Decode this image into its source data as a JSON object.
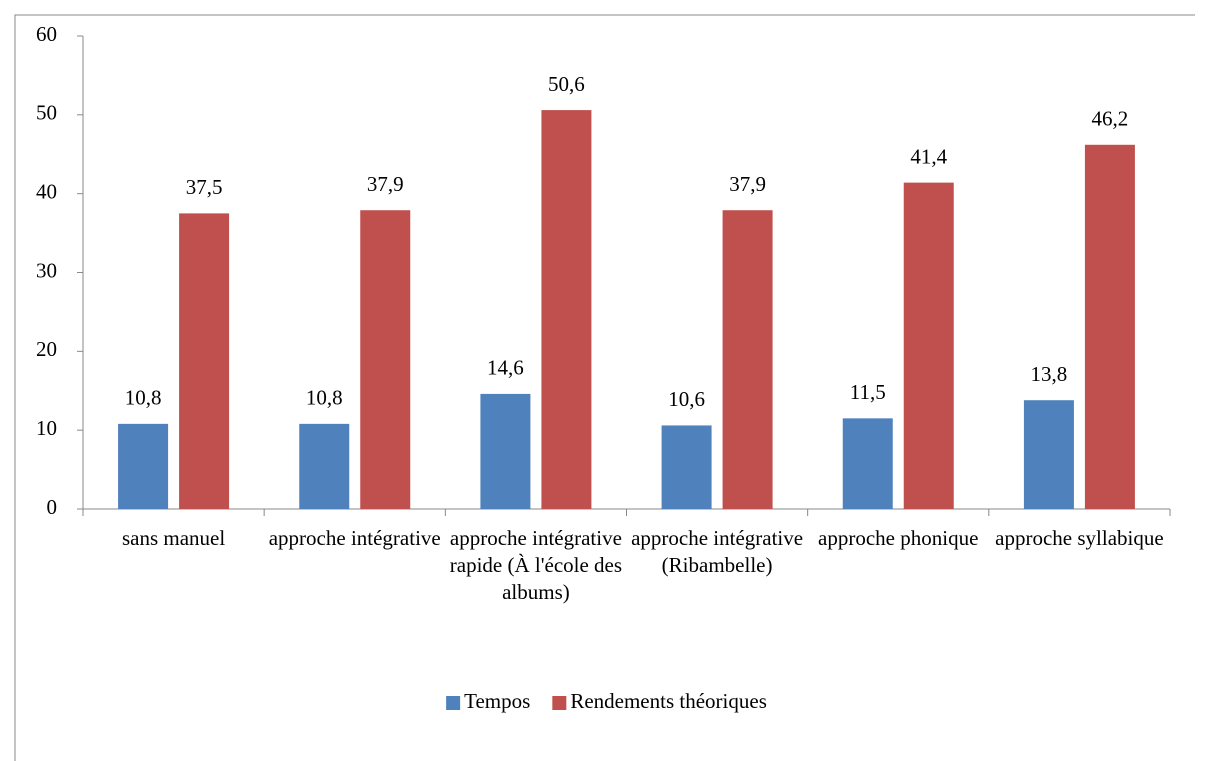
{
  "chart_data": {
    "type": "bar",
    "categories": [
      "sans manuel",
      "approche intégrative",
      "approche intégrative rapide (À l'école des albums)",
      "approche intégrative (Ribambelle)",
      "approche phonique",
      "approche syllabique"
    ],
    "series": [
      {
        "name": "Tempos",
        "color": "#4f81bd",
        "values": [
          10.8,
          10.8,
          14.6,
          10.6,
          11.5,
          13.8
        ],
        "value_labels": [
          "10,8",
          "10,8",
          "14,6",
          "10,6",
          "11,5",
          "13,8"
        ]
      },
      {
        "name": "Rendements théoriques",
        "color": "#c0504d",
        "values": [
          37.5,
          37.9,
          50.6,
          37.9,
          41.4,
          46.2
        ],
        "value_labels": [
          "37,5",
          "37,9",
          "50,6",
          "37,9",
          "41,4",
          "46,2"
        ]
      }
    ],
    "ylim": [
      0,
      60
    ],
    "yticks": [
      0,
      10,
      20,
      30,
      40,
      50,
      60
    ],
    "grid": false,
    "legend": "bottom"
  }
}
